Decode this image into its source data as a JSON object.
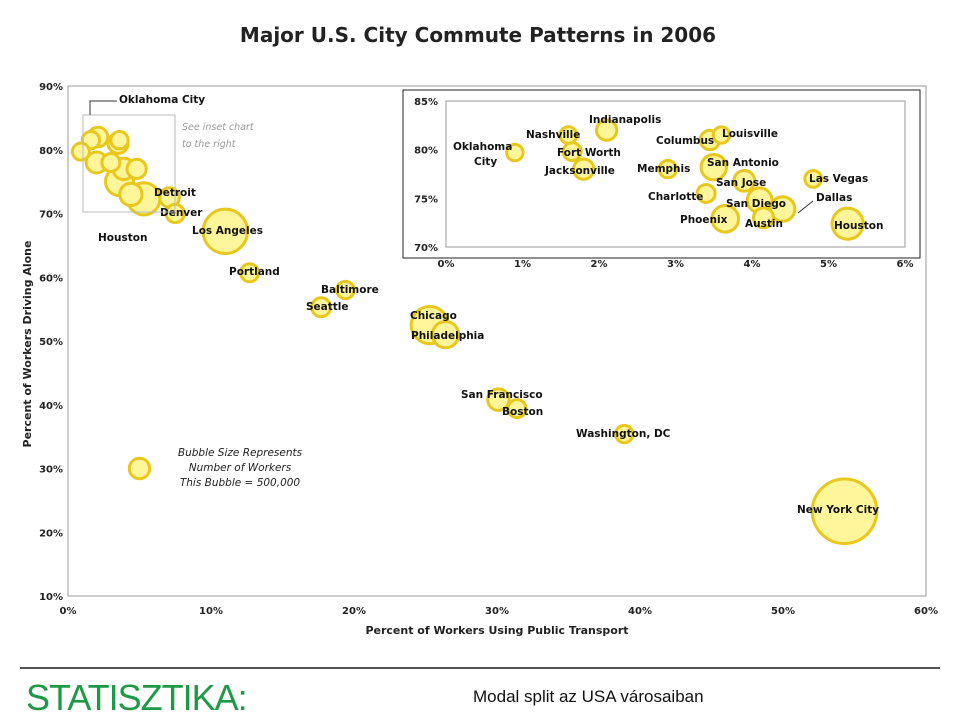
{
  "chart_data": [
    {
      "type": "scatter",
      "title": "Major U.S. City Commute Patterns in 2006",
      "xlabel": "Percent of Workers Using Public Transport",
      "ylabel": "Percent of Workers Driving Alone",
      "xlim": [
        0,
        60
      ],
      "ylim": [
        10,
        90
      ],
      "x_ticks": [
        "0%",
        "10%",
        "20%",
        "30%",
        "40%",
        "50%",
        "60%"
      ],
      "y_ticks": [
        "10%",
        "20%",
        "30%",
        "40%",
        "50%",
        "60%",
        "70%",
        "80%",
        "90%"
      ],
      "grid": false,
      "bubble_color": "#fff59a",
      "bubble_edge_color": "#e8c81c",
      "points": [
        {
          "label": "Los Angeles",
          "x": 11.0,
          "y": 67.2,
          "workers_k": 1700
        },
        {
          "label": "Portland",
          "x": 12.7,
          "y": 60.7,
          "workers_k": 280
        },
        {
          "label": "Baltimore",
          "x": 19.4,
          "y": 58.0,
          "workers_k": 260
        },
        {
          "label": "Seattle",
          "x": 17.7,
          "y": 55.3,
          "workers_k": 310
        },
        {
          "label": "Chicago",
          "x": 25.3,
          "y": 52.5,
          "workers_k": 1200
        },
        {
          "label": "Philadelphia",
          "x": 26.4,
          "y": 51.0,
          "workers_k": 600
        },
        {
          "label": "San Francisco",
          "x": 30.1,
          "y": 40.8,
          "workers_k": 400
        },
        {
          "label": "Boston",
          "x": 31.4,
          "y": 39.4,
          "workers_k": 280
        },
        {
          "label": "Washington, DC",
          "x": 38.9,
          "y": 35.4,
          "workers_k": 260
        },
        {
          "label": "New York City",
          "x": 54.3,
          "y": 23.3,
          "workers_k": 3600
        },
        {
          "label": "Detroit",
          "x": 7.1,
          "y": 72.5,
          "workers_k": 330
        },
        {
          "label": "Denver",
          "x": 7.5,
          "y": 70.0,
          "workers_k": 290
        },
        {
          "label": "Houston",
          "x": 5.3,
          "y": 72.3,
          "workers_k": 900
        },
        {
          "label": "Oklahoma City",
          "x": 0.9,
          "y": 79.7,
          "workers_k": 250
        }
      ],
      "unlabeled_points": [
        {
          "x": 2.1,
          "y": 82.0,
          "workers_k": 330
        },
        {
          "x": 1.6,
          "y": 81.5,
          "workers_k": 260
        },
        {
          "x": 3.5,
          "y": 81.0,
          "workers_k": 350
        },
        {
          "x": 3.6,
          "y": 81.5,
          "workers_k": 260
        },
        {
          "x": 2.0,
          "y": 78.0,
          "workers_k": 380
        },
        {
          "x": 3.0,
          "y": 78.0,
          "workers_k": 280
        },
        {
          "x": 3.9,
          "y": 77.0,
          "workers_k": 400
        },
        {
          "x": 4.8,
          "y": 77.0,
          "workers_k": 320
        },
        {
          "x": 3.6,
          "y": 75.0,
          "workers_k": 680
        },
        {
          "x": 4.4,
          "y": 73.0,
          "workers_k": 430
        }
      ],
      "bubble_size_note": [
        "Bubble Size Represents",
        "Number of Workers",
        "This Bubble = 500,000"
      ],
      "reference_bubble": {
        "x": 5.0,
        "y": 30.0,
        "workers_k": 500
      },
      "inset_box_note": [
        "See inset chart",
        "to the right"
      ]
    },
    {
      "type": "scatter",
      "title": "",
      "xlim": [
        0,
        6
      ],
      "ylim": [
        70,
        85
      ],
      "x_ticks": [
        "0%",
        "1%",
        "2%",
        "3%",
        "4%",
        "5%",
        "6%"
      ],
      "y_ticks": [
        "70%",
        "75%",
        "80%",
        "85%"
      ],
      "points": [
        {
          "label": "Oklahoma City",
          "x": 0.9,
          "y": 79.7,
          "workers_k": 250
        },
        {
          "label": "Indianapolis",
          "x": 2.1,
          "y": 82.0,
          "workers_k": 380
        },
        {
          "label": "Nashville",
          "x": 1.6,
          "y": 81.5,
          "workers_k": 260
        },
        {
          "label": "Fort Worth",
          "x": 1.65,
          "y": 79.8,
          "workers_k": 300
        },
        {
          "label": "Jacksonville",
          "x": 1.8,
          "y": 78.0,
          "workers_k": 380
        },
        {
          "label": "Columbus",
          "x": 3.45,
          "y": 81.0,
          "workers_k": 350
        },
        {
          "label": "Louisville",
          "x": 3.6,
          "y": 81.5,
          "workers_k": 250
        },
        {
          "label": "Memphis",
          "x": 2.9,
          "y": 78.0,
          "workers_k": 280
        },
        {
          "label": "San Antonio",
          "x": 3.5,
          "y": 78.2,
          "workers_k": 600
        },
        {
          "label": "San Jose",
          "x": 3.9,
          "y": 76.8,
          "workers_k": 400
        },
        {
          "label": "Las Vegas",
          "x": 4.8,
          "y": 77.0,
          "workers_k": 260
        },
        {
          "label": "Charlotte",
          "x": 3.4,
          "y": 75.5,
          "workers_k": 300
        },
        {
          "label": "San Diego",
          "x": 4.1,
          "y": 74.8,
          "workers_k": 570
        },
        {
          "label": "Dallas",
          "x": 4.4,
          "y": 73.9,
          "workers_k": 560
        },
        {
          "label": "Phoenix",
          "x": 3.65,
          "y": 72.9,
          "workers_k": 660
        },
        {
          "label": "Austin",
          "x": 4.15,
          "y": 73.0,
          "workers_k": 370
        },
        {
          "label": "Houston",
          "x": 5.25,
          "y": 72.4,
          "workers_k": 900
        }
      ]
    }
  ],
  "footer": {
    "left": "STATISZTIKA:",
    "right": "Modal split az USA városaiban"
  }
}
